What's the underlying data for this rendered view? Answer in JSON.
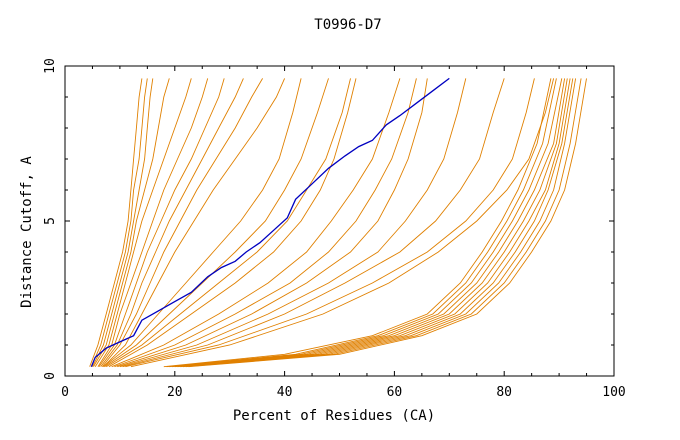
{
  "chart_data": {
    "type": "line",
    "title": "T0996-D7",
    "xlabel": "Percent of Residues (CA)",
    "ylabel": "Distance Cutoff, A",
    "xlim": [
      0,
      100
    ],
    "ylim": [
      0,
      10
    ],
    "xticks": [
      "0",
      "20",
      "40",
      "60",
      "80",
      "100"
    ],
    "yticks": [
      "0",
      "5",
      "10"
    ],
    "grid": false,
    "legend": "none",
    "colors": {
      "others": "#e08000",
      "highlight": "#0000c0"
    },
    "highlight": {
      "x": [
        4.8,
        5.5,
        7.5,
        10,
        12.5,
        14,
        17,
        20,
        23,
        26,
        28.5,
        31,
        33,
        35.5,
        38,
        40.5,
        42,
        45,
        48,
        51,
        53.5,
        56,
        58.5,
        61,
        64,
        67,
        70
      ],
      "y": [
        0.3,
        0.6,
        0.9,
        1.1,
        1.3,
        1.8,
        2.1,
        2.4,
        2.7,
        3.2,
        3.5,
        3.7,
        4.0,
        4.3,
        4.7,
        5.1,
        5.7,
        6.2,
        6.7,
        7.1,
        7.4,
        7.6,
        8.1,
        8.4,
        8.8,
        9.2,
        9.6
      ]
    },
    "series": [
      {
        "x": [
          4.5,
          6,
          7.5,
          9,
          10.5,
          11.5,
          12,
          12.5,
          13,
          13.5,
          14
        ],
        "y": [
          0.3,
          1.0,
          2.0,
          3.0,
          4.0,
          5.0,
          6.0,
          7.0,
          8.0,
          9.0,
          9.6
        ]
      },
      {
        "x": [
          4.8,
          6.5,
          8,
          9.5,
          11,
          12,
          12.5,
          13.5,
          14,
          14.5,
          15
        ],
        "y": [
          0.3,
          1.0,
          2.0,
          3.0,
          4.0,
          5.0,
          6.0,
          7.0,
          8.0,
          9.0,
          9.6
        ]
      },
      {
        "x": [
          5,
          7,
          8.5,
          10,
          11.5,
          12.5,
          13.5,
          14.5,
          15,
          15.5,
          16
        ],
        "y": [
          0.3,
          1.0,
          2.0,
          3.0,
          4.0,
          5.0,
          6.0,
          7.0,
          8.0,
          9.0,
          9.6
        ]
      },
      {
        "x": [
          5.2,
          7.5,
          9,
          10.5,
          12,
          13,
          14.5,
          16,
          17,
          18,
          19
        ],
        "y": [
          0.3,
          1.0,
          2.0,
          3.0,
          4.0,
          5.0,
          6.0,
          7.0,
          8.0,
          9.0,
          9.6
        ]
      },
      {
        "x": [
          5.5,
          8,
          9.5,
          11,
          12.5,
          14,
          16,
          18,
          20,
          22,
          23
        ],
        "y": [
          0.3,
          1.0,
          2.0,
          3.0,
          4.0,
          5.0,
          6.0,
          7.0,
          8.0,
          9.0,
          9.6
        ]
      },
      {
        "x": [
          6,
          8.5,
          10,
          12,
          14,
          16,
          18,
          20.5,
          23,
          25,
          26
        ],
        "y": [
          0.3,
          1.0,
          2.0,
          3.0,
          4.0,
          5.0,
          6.0,
          7.0,
          8.0,
          9.0,
          9.6
        ]
      },
      {
        "x": [
          6.2,
          9,
          11,
          13,
          15,
          17.5,
          20,
          23,
          25.5,
          28,
          29
        ],
        "y": [
          0.3,
          1.0,
          2.0,
          3.0,
          4.0,
          5.0,
          6.0,
          7.0,
          8.0,
          9.0,
          9.6
        ]
      },
      {
        "x": [
          6.5,
          9.5,
          12,
          14,
          16.5,
          19,
          22,
          25,
          28,
          31,
          32.5
        ],
        "y": [
          0.3,
          1.0,
          2.0,
          3.0,
          4.0,
          5.0,
          6.0,
          7.0,
          8.0,
          9.0,
          9.6
        ]
      },
      {
        "x": [
          6.8,
          10,
          13,
          15.5,
          18,
          21,
          24,
          27.5,
          31,
          34,
          36
        ],
        "y": [
          0.3,
          1.0,
          2.0,
          3.0,
          4.0,
          5.0,
          6.0,
          7.0,
          8.0,
          9.0,
          9.6
        ]
      },
      {
        "x": [
          7,
          11,
          14,
          17,
          20,
          23.5,
          27,
          31,
          35,
          38.5,
          40
        ],
        "y": [
          0.3,
          1.0,
          2.0,
          3.0,
          4.0,
          5.0,
          6.0,
          7.0,
          8.0,
          9.0,
          9.6
        ]
      },
      {
        "x": [
          7,
          12,
          17,
          22,
          27,
          32,
          36,
          39,
          41.5,
          43
        ],
        "y": [
          0.3,
          1.0,
          2.0,
          3.0,
          4.0,
          5.0,
          6.0,
          7.0,
          8.5,
          9.6
        ]
      },
      {
        "x": [
          7.2,
          13,
          19,
          25,
          31,
          36.5,
          40,
          43,
          46,
          48
        ],
        "y": [
          0.3,
          1.0,
          2.0,
          3.0,
          4.0,
          5.0,
          6.0,
          7.0,
          8.5,
          9.6
        ]
      },
      {
        "x": [
          7.5,
          14,
          21,
          28,
          35,
          40.5,
          44,
          47.5,
          50.5,
          52
        ],
        "y": [
          0.3,
          1.0,
          2.0,
          3.0,
          4.0,
          5.0,
          6.0,
          7.0,
          8.5,
          9.6
        ]
      },
      {
        "x": [
          8,
          15,
          23,
          31,
          38,
          43,
          46.5,
          49,
          51.5,
          53
        ],
        "y": [
          0.3,
          1.0,
          2.0,
          3.0,
          4.0,
          5.0,
          6.0,
          7.0,
          8.5,
          9.6
        ]
      },
      {
        "x": [
          8.5,
          18,
          28,
          37,
          44,
          48.5,
          52.5,
          56,
          59,
          61
        ],
        "y": [
          0.3,
          1.0,
          2.0,
          3.0,
          4.0,
          5.0,
          6.0,
          7.0,
          8.5,
          9.6
        ]
      },
      {
        "x": [
          9,
          20,
          31,
          41,
          48,
          53,
          56.5,
          59.5,
          62.5,
          64
        ],
        "y": [
          0.3,
          1.0,
          2.0,
          3.0,
          4.0,
          5.0,
          6.0,
          7.0,
          8.5,
          9.6
        ]
      },
      {
        "x": [
          9.5,
          22,
          34,
          44,
          52,
          57,
          60,
          62.5,
          65,
          66
        ],
        "y": [
          0.3,
          1.0,
          2.0,
          3.0,
          4.0,
          5.0,
          6.0,
          7.0,
          8.5,
          9.6
        ]
      },
      {
        "x": [
          10,
          24,
          37,
          48,
          57,
          62,
          66,
          69,
          71.5,
          73
        ],
        "y": [
          0.3,
          1.0,
          2.0,
          3.0,
          4.0,
          5.0,
          6.0,
          7.0,
          8.5,
          9.6
        ]
      },
      {
        "x": [
          10.5,
          26,
          40,
          51,
          61,
          67.5,
          72,
          75.5,
          78,
          80
        ],
        "y": [
          0.3,
          1.0,
          2.0,
          3.0,
          4.0,
          5.0,
          6.0,
          7.0,
          8.5,
          9.6
        ]
      },
      {
        "x": [
          11,
          28,
          44,
          56,
          66,
          73,
          78,
          81.5,
          84,
          85.5
        ],
        "y": [
          0.3,
          1.0,
          2.0,
          3.0,
          4.0,
          5.0,
          6.0,
          7.0,
          8.5,
          9.6
        ]
      },
      {
        "x": [
          12,
          30,
          47,
          59,
          68,
          75,
          80.5,
          84.5,
          87.5,
          89
        ],
        "y": [
          0.3,
          1.0,
          2.0,
          3.0,
          4.0,
          5.0,
          6.0,
          7.0,
          8.5,
          9.6
        ]
      },
      {
        "x": [
          18,
          40,
          56,
          66,
          72,
          76,
          79.5,
          82.5,
          86,
          88.5
        ],
        "y": [
          0.3,
          0.7,
          1.3,
          2.0,
          3.0,
          4.0,
          5.0,
          6.0,
          7.5,
          9.6
        ]
      },
      {
        "x": [
          18.5,
          42,
          57,
          67,
          73,
          77,
          80.5,
          83.5,
          87,
          89.5
        ],
        "y": [
          0.3,
          0.7,
          1.3,
          2.0,
          3.0,
          4.0,
          5.0,
          6.0,
          7.5,
          9.6
        ]
      },
      {
        "x": [
          19,
          43,
          58,
          68,
          74,
          78,
          81.5,
          84.5,
          88,
          90.5
        ],
        "y": [
          0.3,
          0.7,
          1.3,
          2.0,
          3.0,
          4.0,
          5.0,
          6.0,
          7.5,
          9.6
        ]
      },
      {
        "x": [
          19.5,
          44,
          59,
          69,
          75,
          79,
          82.5,
          85.5,
          89,
          91
        ],
        "y": [
          0.3,
          0.7,
          1.3,
          2.0,
          3.0,
          4.0,
          5.0,
          6.0,
          7.5,
          9.6
        ]
      },
      {
        "x": [
          20,
          45,
          60,
          70,
          76,
          80,
          83.5,
          86.5,
          89.5,
          91.5
        ],
        "y": [
          0.3,
          0.7,
          1.3,
          2.0,
          3.0,
          4.0,
          5.0,
          6.0,
          7.5,
          9.6
        ]
      },
      {
        "x": [
          20.5,
          46,
          61,
          71,
          77,
          81,
          84.5,
          87.5,
          90,
          92
        ],
        "y": [
          0.3,
          0.7,
          1.3,
          2.0,
          3.0,
          4.0,
          5.0,
          6.0,
          7.5,
          9.6
        ]
      },
      {
        "x": [
          21,
          47,
          62,
          72,
          78,
          82,
          85.5,
          88,
          90.5,
          92.5
        ],
        "y": [
          0.3,
          0.7,
          1.3,
          2.0,
          3.0,
          4.0,
          5.0,
          6.0,
          7.5,
          9.6
        ]
      },
      {
        "x": [
          21.5,
          48,
          63,
          73,
          79,
          83,
          86.5,
          89,
          91,
          93
        ],
        "y": [
          0.3,
          0.7,
          1.3,
          2.0,
          3.0,
          4.0,
          5.0,
          6.0,
          7.5,
          9.6
        ]
      },
      {
        "x": [
          22,
          49,
          64,
          74,
          80,
          84,
          87.5,
          90,
          92,
          94
        ],
        "y": [
          0.3,
          0.7,
          1.3,
          2.0,
          3.0,
          4.0,
          5.0,
          6.0,
          7.5,
          9.6
        ]
      },
      {
        "x": [
          22.5,
          50,
          65,
          75,
          81,
          85,
          88.5,
          91,
          93,
          95
        ],
        "y": [
          0.3,
          0.7,
          1.3,
          2.0,
          3.0,
          4.0,
          5.0,
          6.0,
          7.5,
          9.6
        ]
      }
    ]
  }
}
